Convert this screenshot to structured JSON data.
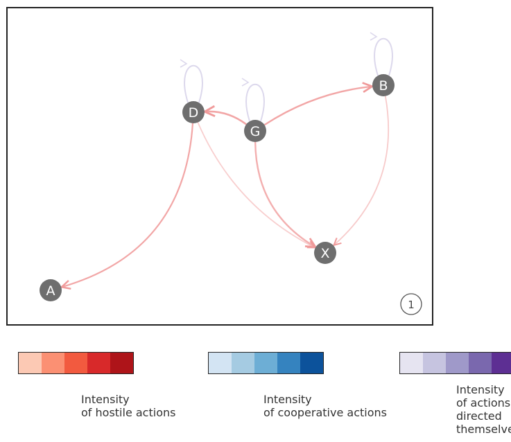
{
  "diagram": {
    "panel_number": "1",
    "node_color": "#6e6e6e",
    "nodes": [
      {
        "id": "A",
        "label": "A"
      },
      {
        "id": "B",
        "label": "B"
      },
      {
        "id": "D",
        "label": "D"
      },
      {
        "id": "G",
        "label": "G"
      },
      {
        "id": "X",
        "label": "X"
      }
    ],
    "edges": [
      {
        "from": "D",
        "to": "A",
        "kind": "hostile"
      },
      {
        "from": "G",
        "to": "D",
        "kind": "hostile"
      },
      {
        "from": "G",
        "to": "B",
        "kind": "hostile"
      },
      {
        "from": "G",
        "to": "X",
        "kind": "hostile"
      },
      {
        "from": "D",
        "to": "X",
        "kind": "hostile"
      },
      {
        "from": "B",
        "to": "X",
        "kind": "hostile"
      },
      {
        "from": "D",
        "to": "D",
        "kind": "self"
      },
      {
        "from": "G",
        "to": "G",
        "kind": "self"
      },
      {
        "from": "B",
        "to": "B",
        "kind": "self"
      }
    ]
  },
  "legends": [
    {
      "id": "hostile",
      "caption_line1": "Intensity",
      "caption_line2": "of hostile actions",
      "colors": [
        "#fcc9b4",
        "#fb9073",
        "#f25a3f",
        "#d8292a",
        "#ae1419"
      ]
    },
    {
      "id": "cooperative",
      "caption_line1": "Intensity",
      "caption_line2": "of cooperative actions",
      "colors": [
        "#d3e4f3",
        "#a5cbe2",
        "#6daed5",
        "#3583bf",
        "#0c529b"
      ]
    },
    {
      "id": "self",
      "caption_line1": "Intensity",
      "caption_line2": "of actions directed",
      "caption_line3": "themselves",
      "colors": [
        "#e6e4f1",
        "#c6c4e0",
        "#9f99c9",
        "#7a68ae",
        "#5d2f93"
      ]
    }
  ]
}
